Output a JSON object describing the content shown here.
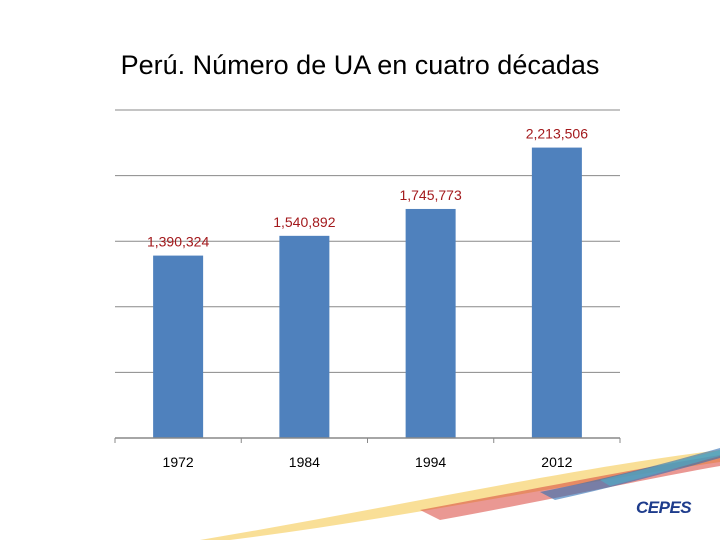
{
  "chart_data": {
    "type": "bar",
    "title": "Perú. Número de UA en cuatro décadas",
    "categories": [
      "1972",
      "1984",
      "1994",
      "2012"
    ],
    "values": [
      1390324,
      1540892,
      1745773,
      2213506
    ],
    "value_labels": [
      "1,390,324",
      "1,540,892",
      "1,745,773",
      "2,213,506"
    ],
    "ylim": [
      0,
      2500000
    ],
    "grid": true,
    "bar_color": "#4f81bd",
    "label_color": "#a3191c"
  },
  "logo": {
    "text": "CEPES"
  }
}
